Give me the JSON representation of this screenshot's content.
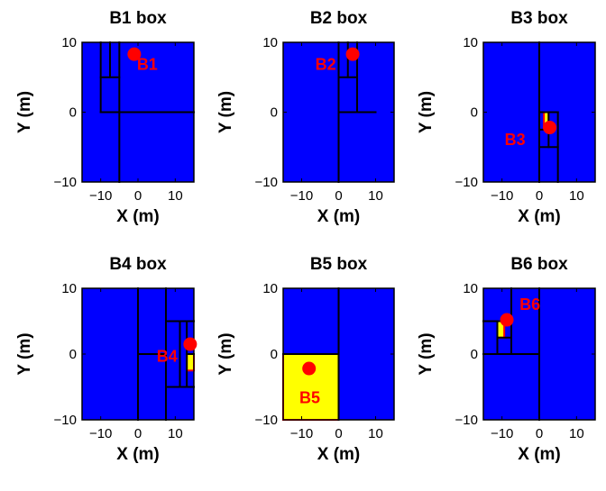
{
  "colors": {
    "background": "#0000ff",
    "highlight": "#ffff00",
    "highlight_edge": "#ff0000",
    "marker": "#ff0000",
    "grid_lines": "#000000"
  },
  "chart_data": [
    {
      "type": "partition",
      "title": "B1 box",
      "xlabel": "X (m)",
      "ylabel": "Y (m)",
      "xlim": [
        -15,
        15
      ],
      "ylim": [
        -10,
        10
      ],
      "xticks": [
        {
          "v": -10,
          "label": "−10"
        },
        {
          "v": 0,
          "label": "0"
        },
        {
          "v": 10,
          "label": "10"
        }
      ],
      "yticks": [
        {
          "v": -10,
          "label": "−10"
        },
        {
          "v": 0,
          "label": "0"
        },
        {
          "v": 10,
          "label": "10"
        }
      ],
      "cell_lines": [
        {
          "x1": -10,
          "y1": 0,
          "x2": 15,
          "y2": 0
        },
        {
          "x1": -5,
          "y1": 10,
          "x2": -5,
          "y2": -10
        },
        {
          "x1": -10,
          "y1": 10,
          "x2": -10,
          "y2": 0
        },
        {
          "x1": -10,
          "y1": 5,
          "x2": -5,
          "y2": 5
        },
        {
          "x1": -7.5,
          "y1": 10,
          "x2": -7.5,
          "y2": 5
        }
      ],
      "highlight": null,
      "point": {
        "x": -1,
        "y": 8.3
      },
      "point_label": "B1",
      "point_label_pos": {
        "x": 2.5,
        "y": 7
      }
    },
    {
      "type": "partition",
      "title": "B2 box",
      "xlabel": "X (m)",
      "ylabel": "Y (m)",
      "xlim": [
        -15,
        15
      ],
      "ylim": [
        -10,
        10
      ],
      "xticks": [
        {
          "v": -10,
          "label": "−10"
        },
        {
          "v": 0,
          "label": "0"
        },
        {
          "v": 10,
          "label": "10"
        }
      ],
      "yticks": [
        {
          "v": -10,
          "label": "−10"
        },
        {
          "v": 0,
          "label": "0"
        },
        {
          "v": 10,
          "label": "10"
        }
      ],
      "cell_lines": [
        {
          "x1": 0,
          "y1": 10,
          "x2": 0,
          "y2": -10
        },
        {
          "x1": 0,
          "y1": 0,
          "x2": 10,
          "y2": 0
        },
        {
          "x1": 5,
          "y1": 10,
          "x2": 5,
          "y2": 0
        },
        {
          "x1": 0,
          "y1": 5,
          "x2": 5,
          "y2": 5
        },
        {
          "x1": 2.5,
          "y1": 10,
          "x2": 2.5,
          "y2": 5
        }
      ],
      "highlight": null,
      "point": {
        "x": 3.8,
        "y": 8.3
      },
      "point_label": "B2",
      "point_label_pos": {
        "x": -3.5,
        "y": 7
      }
    },
    {
      "type": "partition",
      "title": "B3 box",
      "xlabel": "X (m)",
      "ylabel": "Y (m)",
      "xlim": [
        -15,
        15
      ],
      "ylim": [
        -10,
        10
      ],
      "xticks": [
        {
          "v": -10,
          "label": "−10"
        },
        {
          "v": 0,
          "label": "0"
        },
        {
          "v": 10,
          "label": "10"
        }
      ],
      "yticks": [
        {
          "v": -10,
          "label": "−10"
        },
        {
          "v": 0,
          "label": "0"
        },
        {
          "v": 10,
          "label": "10"
        }
      ],
      "cell_lines": [
        {
          "x1": 0,
          "y1": 10,
          "x2": 0,
          "y2": -10
        },
        {
          "x1": 0,
          "y1": 0,
          "x2": 5,
          "y2": 0
        },
        {
          "x1": 5,
          "y1": 0,
          "x2": 5,
          "y2": -10
        },
        {
          "x1": 0,
          "y1": -5,
          "x2": 5,
          "y2": -5
        },
        {
          "x1": 2.5,
          "y1": 0,
          "x2": 2.5,
          "y2": -5
        },
        {
          "x1": 0,
          "y1": -2.5,
          "x2": 2.5,
          "y2": -2.5
        }
      ],
      "highlight": {
        "x0": 1.25,
        "y0": -2.5,
        "x1": 2.5,
        "y1": 0
      },
      "point": {
        "x": 2.8,
        "y": -2.2
      },
      "point_label": "B3",
      "point_label_pos": {
        "x": -6.5,
        "y": -3.8
      }
    },
    {
      "type": "partition",
      "title": "B4 box",
      "xlabel": "X (m)",
      "ylabel": "Y (m)",
      "xlim": [
        -15,
        15
      ],
      "ylim": [
        -10,
        10
      ],
      "xticks": [
        {
          "v": -10,
          "label": "−10"
        },
        {
          "v": 0,
          "label": "0"
        },
        {
          "v": 10,
          "label": "10"
        }
      ],
      "yticks": [
        {
          "v": -10,
          "label": "−10"
        },
        {
          "v": 0,
          "label": "0"
        },
        {
          "v": 10,
          "label": "10"
        }
      ],
      "cell_lines": [
        {
          "x1": 0,
          "y1": 10,
          "x2": 0,
          "y2": -10
        },
        {
          "x1": 7.5,
          "y1": 10,
          "x2": 7.5,
          "y2": -10
        },
        {
          "x1": 0,
          "y1": 0,
          "x2": 7.5,
          "y2": 0
        },
        {
          "x1": 7.5,
          "y1": 5,
          "x2": 15,
          "y2": 5
        },
        {
          "x1": 7.5,
          "y1": -5,
          "x2": 15,
          "y2": -5
        },
        {
          "x1": 11.25,
          "y1": 5,
          "x2": 11.25,
          "y2": -5
        },
        {
          "x1": 13.1,
          "y1": 5,
          "x2": 13.1,
          "y2": -5
        },
        {
          "x1": 13.1,
          "y1": 0,
          "x2": 15,
          "y2": 0
        }
      ],
      "highlight": {
        "x0": 13.1,
        "y0": -2.5,
        "x1": 15,
        "y1": 0
      },
      "point": {
        "x": 14,
        "y": 1.5
      },
      "point_label": "B4",
      "point_label_pos": {
        "x": 7.8,
        "y": -0.2
      }
    },
    {
      "type": "partition",
      "title": "B5 box",
      "xlabel": "X (m)",
      "ylabel": "Y (m)",
      "xlim": [
        -15,
        15
      ],
      "ylim": [
        -10,
        10
      ],
      "xticks": [
        {
          "v": -10,
          "label": "−10"
        },
        {
          "v": 0,
          "label": "0"
        },
        {
          "v": 10,
          "label": "10"
        }
      ],
      "yticks": [
        {
          "v": -10,
          "label": "−10"
        },
        {
          "v": 0,
          "label": "0"
        },
        {
          "v": 10,
          "label": "10"
        }
      ],
      "cell_lines": [
        {
          "x1": 0,
          "y1": 10,
          "x2": 0,
          "y2": -10
        },
        {
          "x1": -15,
          "y1": 0,
          "x2": 0,
          "y2": 0
        }
      ],
      "highlight": {
        "x0": -15,
        "y0": -10,
        "x1": 0,
        "y1": 0
      },
      "point": {
        "x": -8,
        "y": -2.2
      },
      "point_label": "B5",
      "point_label_pos": {
        "x": -7.8,
        "y": -6.5
      }
    },
    {
      "type": "partition",
      "title": "B6 box",
      "xlabel": "X (m)",
      "ylabel": "Y (m)",
      "xlim": [
        -15,
        15
      ],
      "ylim": [
        -10,
        10
      ],
      "xticks": [
        {
          "v": -10,
          "label": "−10"
        },
        {
          "v": 0,
          "label": "0"
        },
        {
          "v": 10,
          "label": "10"
        }
      ],
      "yticks": [
        {
          "v": -10,
          "label": "−10"
        },
        {
          "v": 0,
          "label": "0"
        },
        {
          "v": 10,
          "label": "10"
        }
      ],
      "cell_lines": [
        {
          "x1": 0,
          "y1": 10,
          "x2": 0,
          "y2": -10
        },
        {
          "x1": -15,
          "y1": 0,
          "x2": 0,
          "y2": 0
        },
        {
          "x1": -7.5,
          "y1": 10,
          "x2": -7.5,
          "y2": 0
        },
        {
          "x1": -15,
          "y1": 5,
          "x2": -7.5,
          "y2": 5
        },
        {
          "x1": -11.25,
          "y1": 5,
          "x2": -11.25,
          "y2": 0
        },
        {
          "x1": -11.25,
          "y1": 2.5,
          "x2": -7.5,
          "y2": 2.5
        }
      ],
      "highlight": {
        "x0": -11.25,
        "y0": 2.5,
        "x1": -9.4,
        "y1": 5
      },
      "point": {
        "x": -8.7,
        "y": 5.2
      },
      "point_label": "B6",
      "point_label_pos": {
        "x": -2.5,
        "y": 7.7
      }
    }
  ]
}
